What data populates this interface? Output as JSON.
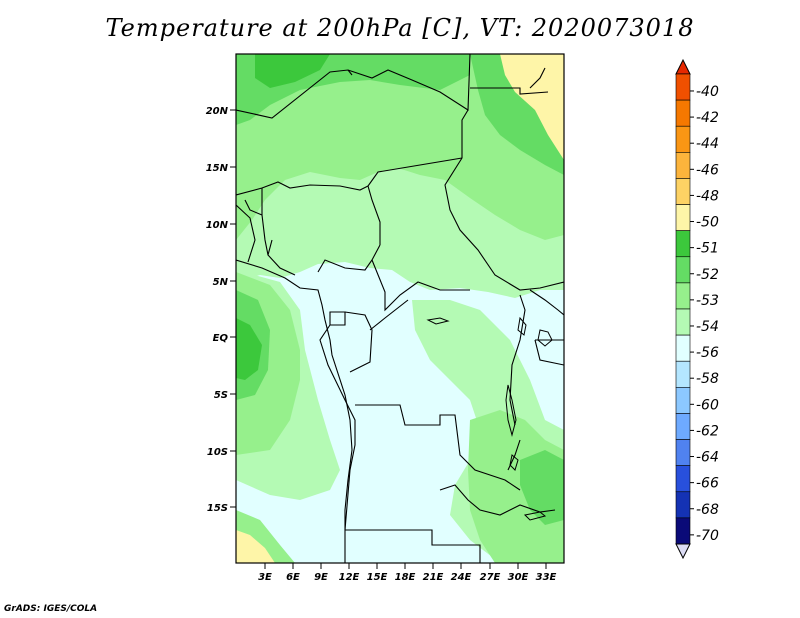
{
  "title": "Temperature at 200hPa [C], VT: 2020073018",
  "lat_labels": [
    "20N",
    "15N",
    "10N",
    "5N",
    "EQ",
    "5S",
    "10S",
    "15S"
  ],
  "lon_labels": [
    "3E",
    "6E",
    "9E",
    "12E",
    "15E",
    "18E",
    "21E",
    "24E",
    "27E",
    "30E",
    "33E"
  ],
  "colorbar": {
    "labels": [
      "-40",
      "-42",
      "-44",
      "-46",
      "-48",
      "-50",
      "-51",
      "-52",
      "-53",
      "-54",
      "-56",
      "-58",
      "-60",
      "-62",
      "-64",
      "-66",
      "-68",
      "-70"
    ],
    "colors": [
      "#e62800",
      "#f05000",
      "#f57800",
      "#fa9614",
      "#fcb43c",
      "#fdd264",
      "#fef5a8",
      "#3cc83c",
      "#64dc64",
      "#96f08c",
      "#b4fab4",
      "#e1ffff",
      "#b4e6ff",
      "#8cc8ff",
      "#6eaaff",
      "#5082f0",
      "#2850dc",
      "#1432b4",
      "#0a0a78",
      "#dcdcf5"
    ]
  },
  "credit": "GrADS: IGES/COLA"
}
